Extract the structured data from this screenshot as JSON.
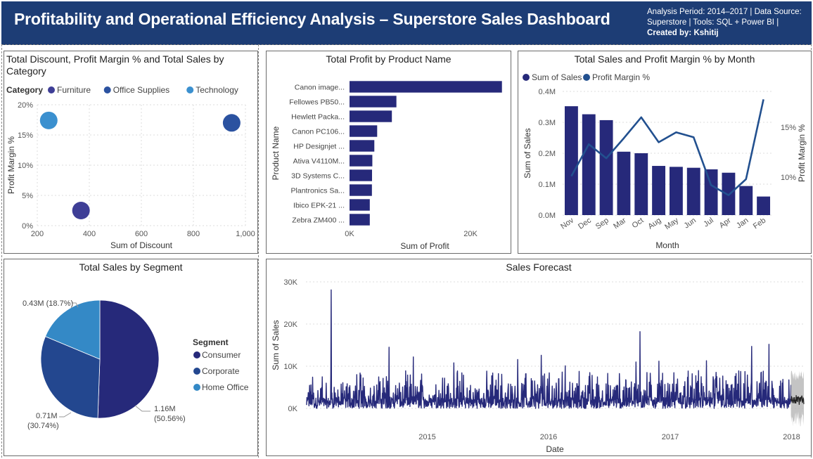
{
  "header": {
    "title": "Profitability and Operational Efficiency Analysis – Superstore Sales Dashboard",
    "meta_line1": "Analysis Period: 2014–2017 | Data Source:",
    "meta_line2": "Superstore | Tools: SQL + Power BI |",
    "meta_line3": "Created by: Kshitij"
  },
  "colors": {
    "furniture": "#3e3e96",
    "office_supplies": "#2b52a0",
    "technology": "#3b90cf",
    "bar": "#26297a",
    "line": "#22508f"
  },
  "chart_data": [
    {
      "id": "scatter",
      "type": "scatter",
      "title_line1": "Total Discount, Profit Margin % and Total Sales by",
      "title_line2": "Category",
      "legend_title": "Category",
      "xlabel": "Sum of Discount",
      "ylabel": "Profit Margin %",
      "xlim": [
        200,
        1000
      ],
      "ylim": [
        0,
        20
      ],
      "xticks": [
        {
          "v": 200,
          "label": "200"
        },
        {
          "v": 400,
          "label": "400"
        },
        {
          "v": 600,
          "label": "600"
        },
        {
          "v": 800,
          "label": "800"
        },
        {
          "v": 1000,
          "label": "1,000"
        }
      ],
      "yticks": [
        {
          "v": 0,
          "label": "0%"
        },
        {
          "v": 5,
          "label": "5%"
        },
        {
          "v": 10,
          "label": "10%"
        },
        {
          "v": 15,
          "label": "15%"
        },
        {
          "v": 20,
          "label": "20%"
        }
      ],
      "points": [
        {
          "name": "Furniture",
          "x": 368,
          "y": 2.5,
          "color": "#3e3e96"
        },
        {
          "name": "Office Supplies",
          "x": 947,
          "y": 17.0,
          "color": "#2b52a0"
        },
        {
          "name": "Technology",
          "x": 244,
          "y": 17.4,
          "color": "#3b90cf"
        }
      ]
    },
    {
      "id": "hbar",
      "type": "bar",
      "title": "Total Profit by Product Name",
      "xlabel": "Sum of Profit",
      "ylabel": "Product Name",
      "xlim": [
        0,
        25000
      ],
      "xticks": [
        {
          "v": 0,
          "label": "0K"
        },
        {
          "v": 20000,
          "label": "20K"
        }
      ],
      "categories": [
        "Canon image...",
        "Fellowes PB50...",
        "Hewlett Packa...",
        "Canon PC106...",
        "HP Designjet ...",
        "Ativa V4110M...",
        "3D Systems C...",
        "Plantronics Sa...",
        "Ibico EPK-21 ...",
        "Zebra ZM400 ..."
      ],
      "values": [
        25200,
        7750,
        7000,
        4570,
        4100,
        3770,
        3720,
        3700,
        3350,
        3350
      ]
    },
    {
      "id": "combo",
      "type": "bar",
      "title": "Total Sales and Profit Margin % by Month",
      "legend": [
        "Sum of Sales",
        "Profit Margin %"
      ],
      "xlabel": "Month",
      "ylabel": "Sum of Sales",
      "y2label": "Profit Margin %",
      "ylim": [
        0,
        0.4
      ],
      "y2lim": [
        6.2,
        18.6
      ],
      "yticks": [
        {
          "v": 0,
          "label": "0.0M"
        },
        {
          "v": 0.1,
          "label": "0.1M"
        },
        {
          "v": 0.2,
          "label": "0.2M"
        },
        {
          "v": 0.3,
          "label": "0.3M"
        },
        {
          "v": 0.4,
          "label": "0.4M"
        }
      ],
      "y2ticks": [
        {
          "v": 10,
          "label": "10%"
        },
        {
          "v": 15,
          "label": "15%"
        }
      ],
      "categories": [
        "Nov",
        "Dec",
        "Sep",
        "Mar",
        "Oct",
        "Aug",
        "May",
        "Jun",
        "Jul",
        "Apr",
        "Jan",
        "Feb"
      ],
      "sales": [
        0.352,
        0.326,
        0.307,
        0.205,
        0.2,
        0.159,
        0.156,
        0.153,
        0.148,
        0.137,
        0.094,
        0.06
      ],
      "margin": [
        10.1,
        13.3,
        11.9,
        13.9,
        16.0,
        13.5,
        14.5,
        14.0,
        9.2,
        8.2,
        9.8,
        17.8
      ]
    },
    {
      "id": "pie",
      "type": "pie",
      "title": "Total Sales by Segment",
      "legend_title": "Segment",
      "slices": [
        {
          "name": "Consumer",
          "value": 1.16,
          "pct": 50.56,
          "label1": "1.16M",
          "label2": "(50.56%)",
          "color": "#26297a"
        },
        {
          "name": "Corporate",
          "value": 0.71,
          "pct": 30.74,
          "label1": "0.71M",
          "label2": "(30.74%)",
          "color": "#23478f"
        },
        {
          "name": "Home Office",
          "value": 0.43,
          "pct": 18.7,
          "label1": "0.43M (18.7%)",
          "label2": "",
          "color": "#3489c6"
        }
      ]
    },
    {
      "id": "forecast",
      "type": "line",
      "title": "Sales Forecast",
      "xlabel": "Date",
      "ylabel": "Sum of Sales",
      "xlim": [
        "2014-01-01",
        "2018-02-07"
      ],
      "ylim": [
        0,
        30000
      ],
      "yticks": [
        {
          "v": 0,
          "label": "0K"
        },
        {
          "v": 10000,
          "label": "10K"
        },
        {
          "v": 20000,
          "label": "20K"
        },
        {
          "v": 30000,
          "label": "30K"
        }
      ],
      "xticks": [
        {
          "v": "2015-01-01",
          "label": "2015"
        },
        {
          "v": "2016-01-01",
          "label": "2016"
        },
        {
          "v": "2017-01-01",
          "label": "2017"
        },
        {
          "v": "2018-01-01",
          "label": "2018"
        }
      ],
      "actual_range": [
        "2014-01-03",
        "2017-12-30"
      ],
      "forecast_range": [
        "2017-12-30",
        "2018-02-07"
      ],
      "peaks": [
        {
          "date": "2014-03-18",
          "y": 28100
        },
        {
          "date": "2014-09-08",
          "y": 14500
        },
        {
          "date": "2014-11-20",
          "y": 12200
        },
        {
          "date": "2015-03-22",
          "y": 10800
        },
        {
          "date": "2015-09-30",
          "y": 11600
        },
        {
          "date": "2015-12-10",
          "y": 12600
        },
        {
          "date": "2016-02-20",
          "y": 10100
        },
        {
          "date": "2016-09-20",
          "y": 11000
        },
        {
          "date": "2016-10-02",
          "y": 18200
        },
        {
          "date": "2016-11-28",
          "y": 11200
        },
        {
          "date": "2017-04-20",
          "y": 11300
        },
        {
          "date": "2017-09-03",
          "y": 14700
        },
        {
          "date": "2017-10-25",
          "y": 15200
        }
      ]
    }
  ]
}
